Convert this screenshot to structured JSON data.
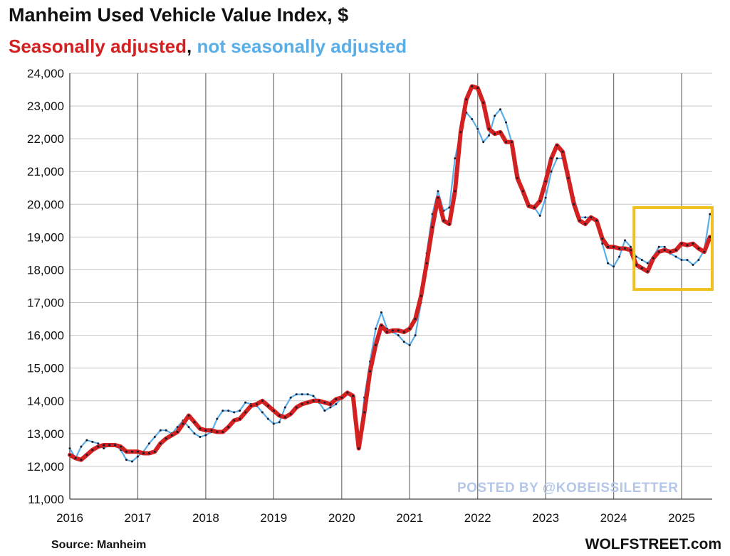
{
  "page": {
    "source": "Source: Manheim",
    "brand": "WOLFSTREET.com",
    "watermark": "POSTED BY @KOBEISSILETTER"
  },
  "chart_data": {
    "type": "line",
    "title": "Manheim Used Vehicle Value Index, $",
    "subtitle": {
      "seasonal": "Seasonally adjusted",
      "separator": ", ",
      "not_seasonal": "not seasonally adjusted"
    },
    "ylim": [
      11000,
      24000
    ],
    "xlim": [
      2016,
      2025.45
    ],
    "y_ticks": [
      11000,
      12000,
      13000,
      14000,
      15000,
      16000,
      17000,
      18000,
      19000,
      20000,
      21000,
      22000,
      23000,
      24000
    ],
    "y_tick_labels": [
      "11,000",
      "12,000",
      "13,000",
      "14,000",
      "15,000",
      "16,000",
      "17,000",
      "18,000",
      "19,000",
      "20,000",
      "21,000",
      "22,000",
      "23,000",
      "24,000"
    ],
    "x_ticks": [
      2016,
      2017,
      2018,
      2019,
      2020,
      2021,
      2022,
      2023,
      2024,
      2025
    ],
    "x_tick_labels": [
      "2016",
      "2017",
      "2018",
      "2019",
      "2020",
      "2021",
      "2022",
      "2023",
      "2024",
      "2025"
    ],
    "grid": true,
    "highlight_box": {
      "x_range": [
        2024.3,
        2025.45
      ],
      "y_range": [
        17400,
        19900
      ],
      "color": "#f0c020"
    },
    "colors": {
      "seasonal": "#d32020",
      "not_seasonal": "#5aaee8",
      "markers": "#1a1a2a"
    },
    "series": [
      {
        "key": "seasonal",
        "values": [
          12350,
          12250,
          12200,
          12350,
          12500,
          12600,
          12650,
          12650,
          12650,
          12600,
          12450,
          12450,
          12450,
          12400,
          12400,
          12450,
          12700,
          12850,
          12950,
          13050,
          13300,
          13550,
          13350,
          13150,
          13100,
          13100,
          13050,
          13050,
          13200,
          13400,
          13450,
          13650,
          13850,
          13900,
          14000,
          13850,
          13700,
          13550,
          13500,
          13600,
          13800,
          13900,
          13950,
          14000,
          14000,
          13950,
          13900,
          14050,
          14100,
          14250,
          14150,
          12550,
          13650,
          14900,
          15700,
          16300,
          16100,
          16150,
          16150,
          16100,
          16200,
          16500,
          17200,
          18200,
          19300,
          20200,
          19500,
          19400,
          20400,
          22200,
          23200,
          23600,
          23550,
          23100,
          22300,
          22150,
          22200,
          21900,
          21900,
          20800,
          20400,
          19950,
          19900,
          20100,
          20700,
          21400,
          21800,
          21600,
          20800,
          20000,
          19500,
          19400,
          19600,
          19500,
          18950,
          18700,
          18700,
          18650,
          18650,
          18600,
          18150,
          18050,
          17950,
          18350,
          18550,
          18600,
          18550,
          18600,
          18800,
          18750,
          18800,
          18650,
          18550,
          19000
        ]
      },
      {
        "key": "not_seasonal",
        "values": [
          12550,
          12250,
          12600,
          12800,
          12750,
          12700,
          12550,
          12650,
          12650,
          12500,
          12200,
          12150,
          12300,
          12450,
          12700,
          12900,
          13100,
          13100,
          13000,
          13200,
          13400,
          13200,
          13000,
          12900,
          12950,
          13050,
          13450,
          13700,
          13700,
          13650,
          13700,
          13950,
          13900,
          13850,
          13650,
          13450,
          13300,
          13350,
          13800,
          14100,
          14200,
          14200,
          14200,
          14150,
          13950,
          13700,
          13800,
          13900,
          14100,
          14200,
          14100,
          12550,
          14100,
          15200,
          16200,
          16700,
          16200,
          16100,
          16000,
          15800,
          15700,
          16000,
          17000,
          18500,
          19700,
          20400,
          19800,
          19900,
          21400,
          22200,
          22800,
          22600,
          22300,
          21900,
          22100,
          22700,
          22900,
          22500,
          21900,
          21050,
          20300,
          20000,
          19900,
          19650,
          20200,
          21000,
          21400,
          21400,
          21000,
          20200,
          19600,
          19600,
          19600,
          19500,
          18800,
          18200,
          18100,
          18400,
          18900,
          18700,
          18400,
          18300,
          18200,
          18400,
          18700,
          18700,
          18500,
          18400,
          18300,
          18300,
          18150,
          18300,
          18600,
          19700
        ]
      }
    ]
  }
}
